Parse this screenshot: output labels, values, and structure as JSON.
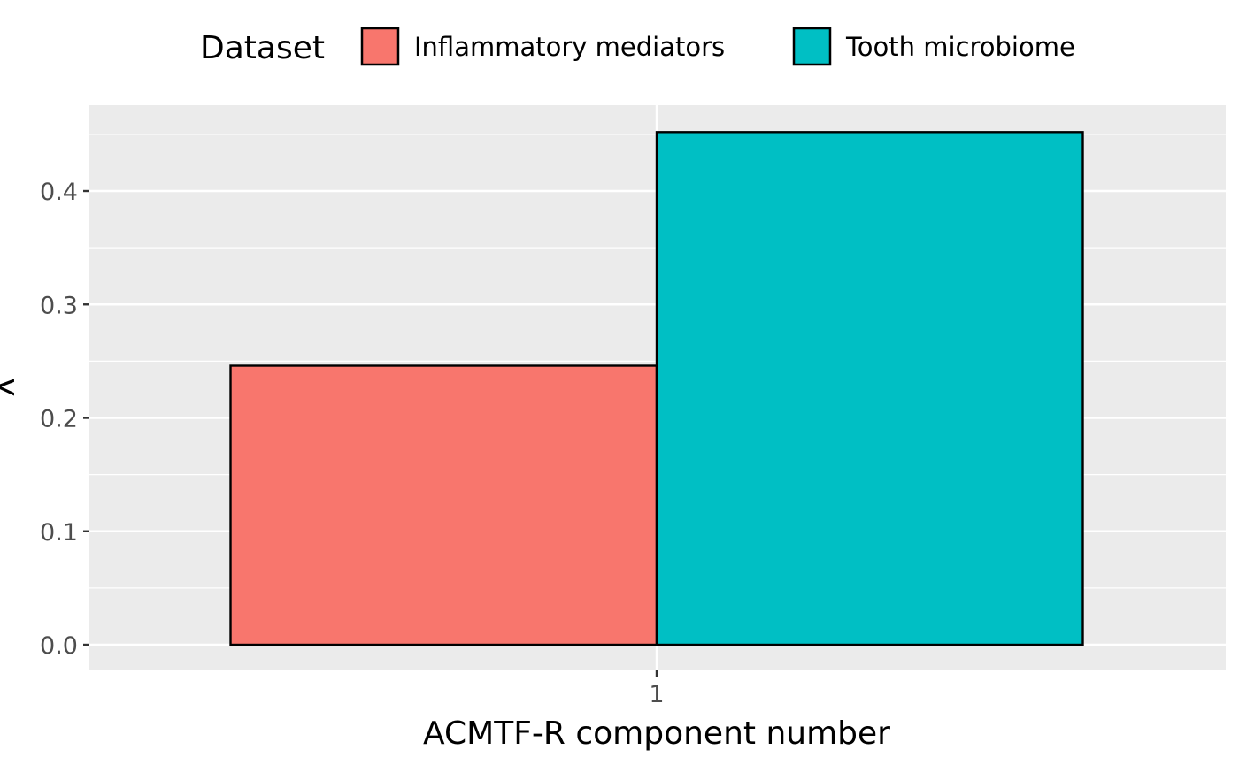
{
  "chart_data": {
    "type": "bar",
    "categories": [
      "1"
    ],
    "series": [
      {
        "name": "Inflammatory mediators",
        "values": [
          0.246
        ],
        "color": "#F8766D"
      },
      {
        "name": "Tooth microbiome",
        "values": [
          0.452
        ],
        "color": "#00BFC4"
      }
    ],
    "xlabel": "ACMTF-R component number",
    "ylabel": "λ",
    "ylim": [
      0,
      0.475
    ],
    "yticks": [
      "0.0",
      "0.1",
      "0.2",
      "0.3",
      "0.4"
    ],
    "legend": {
      "title": "Dataset",
      "position": "top"
    },
    "grid": true,
    "colors": {
      "panel": "#EBEBEB",
      "grid": "#FFFFFF",
      "bar_outline": "#000000",
      "tick_text": "#4D4D4D"
    }
  }
}
